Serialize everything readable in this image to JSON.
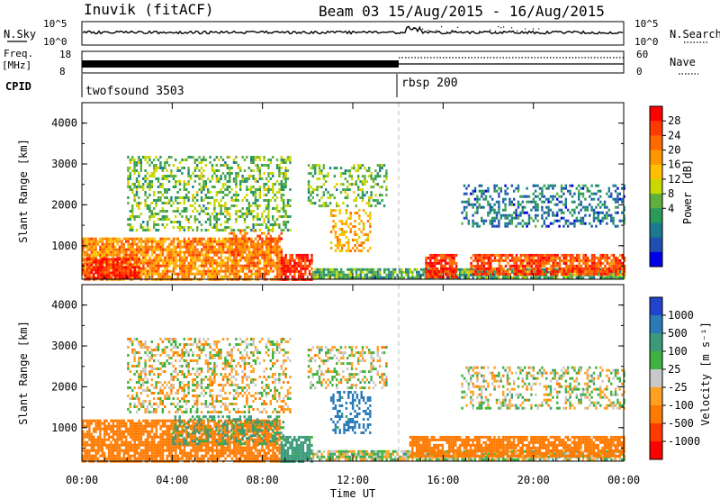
{
  "header": {
    "station": "Inuvik (fitACF)",
    "beam_date": "Beam 03 15/Aug/2015 - 16/Aug/2015"
  },
  "panel_labels": {
    "nsky": "N.Sky",
    "nsearch": "N.Search",
    "freq": "Freq.",
    "freq_unit": "[MHz]",
    "nave": "Nave",
    "cpid": "CPID",
    "nsky_ticks": [
      "10^5",
      "10^0"
    ],
    "nsearch_ticks": [
      "10^5",
      "10^0"
    ],
    "freq_ticks": [
      "18",
      "8"
    ],
    "nave_ticks": [
      "60",
      "0"
    ]
  },
  "cpid_segments": [
    {
      "label": "twofsound 3503",
      "start_hour": 0
    },
    {
      "label": "rbsp 200",
      "start_hour": 14.1
    }
  ],
  "x_axis": {
    "label": "Time UT",
    "ticks": [
      "00:00",
      "04:00",
      "08:00",
      "12:00",
      "16:00",
      "20:00",
      "00:00"
    ],
    "range_hours": [
      0,
      24
    ]
  },
  "power_panel": {
    "ylabel": "Slant Range [km]",
    "yticks": [
      "1000",
      "2000",
      "3000",
      "4000"
    ],
    "colorbar_title": "Power [dB]",
    "colorbar_labels": [
      "28",
      "24",
      "20",
      "16",
      "12",
      "8",
      "4"
    ],
    "colorbar_colors": [
      "#ff0000",
      "#ff3a00",
      "#ff6a00",
      "#ff9800",
      "#ffc000",
      "#c8d800",
      "#60b040",
      "#2a9a5a",
      "#1a7a90",
      "#1f4fb0",
      "#0000e8"
    ]
  },
  "velocity_panel": {
    "ylabel": "Slant Range [km]",
    "yticks": [
      "1000",
      "2000",
      "3000",
      "4000"
    ],
    "colorbar_title": "Velocity [m s⁻¹]",
    "colorbar_labels": [
      "1000",
      "500",
      "100",
      "25",
      "-25",
      "-100",
      "-500",
      "-1000"
    ],
    "colorbar_colors": [
      "#2244cc",
      "#2a7ab8",
      "#3a9a7a",
      "#40b040",
      "#c8c8c8",
      "#ffa020",
      "#ff7a00",
      "#ff3a00",
      "#ff0000"
    ]
  },
  "chart_data": [
    {
      "type": "heatmap",
      "title": "Power [dB]",
      "xlabel": "Time UT",
      "ylabel": "Slant Range [km]",
      "xlim_hours": [
        0,
        24
      ],
      "ylim_km": [
        180,
        4500
      ],
      "value_range_db": [
        0,
        30
      ],
      "echo_regions": [
        {
          "t_start": 0.0,
          "t_end": 8.8,
          "r_min": 200,
          "r_max": 1200,
          "value_db": 22
        },
        {
          "t_start": 0.0,
          "t_end": 2.5,
          "r_min": 200,
          "r_max": 700,
          "value_db": 28
        },
        {
          "t_start": 6.5,
          "t_end": 8.8,
          "r_min": 800,
          "r_max": 1400,
          "value_db": 24
        },
        {
          "t_start": 8.8,
          "t_end": 10.2,
          "r_min": 200,
          "r_max": 800,
          "value_db": 28
        },
        {
          "t_start": 2.0,
          "t_end": 9.2,
          "r_min": 1400,
          "r_max": 3200,
          "value_db": 12
        },
        {
          "t_start": 11.0,
          "t_end": 12.8,
          "r_min": 900,
          "r_max": 1900,
          "value_db": 20
        },
        {
          "t_start": 10.0,
          "t_end": 13.5,
          "r_min": 2000,
          "r_max": 3000,
          "value_db": 12
        },
        {
          "t_start": 10.2,
          "t_end": 24.0,
          "r_min": 200,
          "r_max": 450,
          "value_db": 10
        },
        {
          "t_start": 15.2,
          "t_end": 16.6,
          "r_min": 250,
          "r_max": 800,
          "value_db": 28
        },
        {
          "t_start": 17.2,
          "t_end": 24.0,
          "r_min": 300,
          "r_max": 800,
          "value_db": 26
        },
        {
          "t_start": 16.8,
          "t_end": 24.0,
          "r_min": 1500,
          "r_max": 2500,
          "value_db": 6
        }
      ]
    },
    {
      "type": "heatmap",
      "title": "Velocity [m s-1]",
      "xlabel": "Time UT",
      "ylabel": "Slant Range [km]",
      "xlim_hours": [
        0,
        24
      ],
      "ylim_km": [
        180,
        4500
      ],
      "value_range_ms": [
        -1000,
        1000
      ],
      "echo_regions": [
        {
          "t_start": 0.0,
          "t_end": 8.8,
          "r_min": 200,
          "r_max": 1200,
          "value_ms": -300
        },
        {
          "t_start": 4.0,
          "t_end": 9.0,
          "r_min": 600,
          "r_max": 1300,
          "value_ms": 150
        },
        {
          "t_start": 2.0,
          "t_end": 9.2,
          "r_min": 1400,
          "r_max": 3200,
          "value_ms": -20
        },
        {
          "t_start": 8.8,
          "t_end": 10.2,
          "r_min": 200,
          "r_max": 800,
          "value_ms": 200
        },
        {
          "t_start": 11.0,
          "t_end": 12.8,
          "r_min": 900,
          "r_max": 1900,
          "value_ms": 600
        },
        {
          "t_start": 10.0,
          "t_end": 13.5,
          "r_min": 2000,
          "r_max": 3000,
          "value_ms": 0
        },
        {
          "t_start": 10.2,
          "t_end": 24.0,
          "r_min": 200,
          "r_max": 450,
          "value_ms": 10
        },
        {
          "t_start": 14.5,
          "t_end": 24.0,
          "r_min": 300,
          "r_max": 800,
          "value_ms": -300
        },
        {
          "t_start": 16.8,
          "t_end": 24.0,
          "r_min": 1500,
          "r_max": 2500,
          "value_ms": 0
        }
      ]
    }
  ]
}
